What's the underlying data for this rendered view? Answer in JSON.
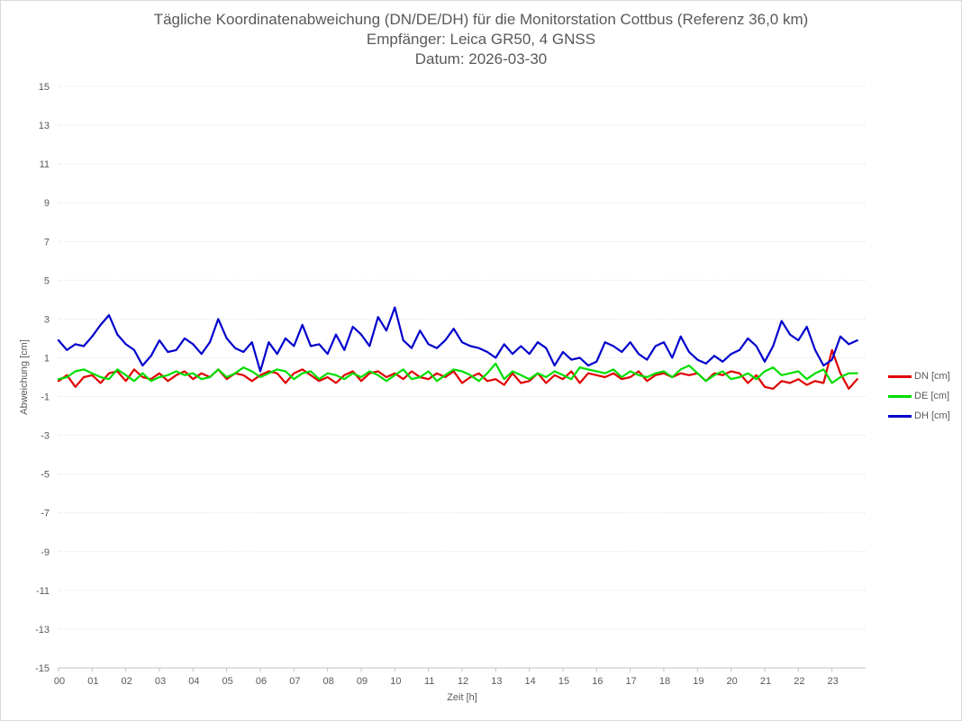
{
  "chart": {
    "title_lines": [
      "Tägliche Koordinatenabweichung (DN/DE/DH) für die Monitorstation Cottbus (Referenz 36,0 km)",
      "Empfänger: Leica GR50, 4 GNSS",
      "Datum: 2026-03-30"
    ]
  },
  "chart_data": {
    "type": "line",
    "title": "Tägliche Koordinatenabweichung (DN/DE/DH) für die Monitorstation Cottbus (Referenz 36,0 km)",
    "subtitle": "Empfänger: Leica GR50, 4 GNSS / Datum: 2026-03-30",
    "xlabel": "Zeit [h]",
    "ylabel": "Abweichung [cm]",
    "xlim": [
      0,
      24
    ],
    "ylim": [
      -15,
      15
    ],
    "x_ticks": [
      "00",
      "01",
      "02",
      "03",
      "04",
      "05",
      "06",
      "07",
      "08",
      "09",
      "10",
      "11",
      "12",
      "13",
      "14",
      "15",
      "16",
      "17",
      "18",
      "19",
      "20",
      "21",
      "22",
      "23"
    ],
    "y_ticks": [
      15,
      13,
      11,
      9,
      7,
      5,
      3,
      1,
      -1,
      -3,
      -5,
      -7,
      -9,
      -11,
      -13,
      -15
    ],
    "grid": "horizontal dotted",
    "legend_position": "right",
    "x": [
      0.0,
      0.25,
      0.5,
      0.75,
      1.0,
      1.25,
      1.5,
      1.75,
      2.0,
      2.25,
      2.5,
      2.75,
      3.0,
      3.25,
      3.5,
      3.75,
      4.0,
      4.25,
      4.5,
      4.75,
      5.0,
      5.25,
      5.5,
      5.75,
      6.0,
      6.25,
      6.5,
      6.75,
      7.0,
      7.25,
      7.5,
      7.75,
      8.0,
      8.25,
      8.5,
      8.75,
      9.0,
      9.25,
      9.5,
      9.75,
      10.0,
      10.25,
      10.5,
      10.75,
      11.0,
      11.25,
      11.5,
      11.75,
      12.0,
      12.25,
      12.5,
      12.75,
      13.0,
      13.25,
      13.5,
      13.75,
      14.0,
      14.25,
      14.5,
      14.75,
      15.0,
      15.25,
      15.5,
      15.75,
      16.0,
      16.25,
      16.5,
      16.75,
      17.0,
      17.25,
      17.5,
      17.75,
      18.0,
      18.25,
      18.5,
      18.75,
      19.0,
      19.25,
      19.5,
      19.75,
      20.0,
      20.25,
      20.5,
      20.75,
      21.0,
      21.25,
      21.5,
      21.75,
      22.0,
      22.25,
      22.5,
      22.75,
      23.0,
      23.25,
      23.5,
      23.75
    ],
    "series": [
      {
        "name": "DN [cm]",
        "color": "#e00000",
        "values": [
          -0.2,
          0.1,
          -0.5,
          0.0,
          0.1,
          -0.3,
          0.2,
          0.3,
          -0.2,
          0.4,
          0.0,
          -0.1,
          0.2,
          -0.2,
          0.1,
          0.3,
          -0.1,
          0.2,
          0.0,
          0.4,
          -0.1,
          0.2,
          0.1,
          -0.2,
          0.1,
          0.3,
          0.2,
          -0.3,
          0.2,
          0.4,
          0.1,
          -0.2,
          0.0,
          -0.3,
          0.1,
          0.3,
          -0.2,
          0.2,
          0.3,
          0.0,
          0.2,
          -0.1,
          0.3,
          0.0,
          -0.1,
          0.2,
          0.0,
          0.3,
          -0.3,
          0.0,
          0.2,
          -0.2,
          -0.1,
          -0.4,
          0.2,
          -0.3,
          -0.2,
          0.2,
          -0.3,
          0.1,
          -0.1,
          0.3,
          -0.3,
          0.2,
          0.1,
          0.0,
          0.2,
          -0.1,
          0.0,
          0.3,
          -0.2,
          0.1,
          0.2,
          0.0,
          0.2,
          0.1,
          0.2,
          -0.2,
          0.2,
          0.1,
          0.3,
          0.2,
          -0.3,
          0.1,
          -0.5,
          -0.6,
          -0.2,
          -0.3,
          -0.1,
          -0.4,
          -0.2,
          -0.3,
          1.4,
          0.2,
          -0.6,
          -0.1
        ]
      },
      {
        "name": "DE [cm]",
        "color": "#00dd00",
        "values": [
          -0.1,
          0.0,
          0.3,
          0.4,
          0.2,
          0.0,
          -0.1,
          0.4,
          0.1,
          -0.2,
          0.2,
          -0.2,
          0.0,
          0.1,
          0.3,
          0.1,
          0.2,
          -0.1,
          0.0,
          0.4,
          0.0,
          0.2,
          0.5,
          0.3,
          0.0,
          0.2,
          0.4,
          0.3,
          -0.1,
          0.2,
          0.3,
          -0.1,
          0.2,
          0.1,
          -0.1,
          0.2,
          0.0,
          0.3,
          0.1,
          -0.2,
          0.1,
          0.4,
          -0.1,
          0.0,
          0.3,
          -0.2,
          0.1,
          0.4,
          0.3,
          0.1,
          -0.2,
          0.2,
          0.7,
          -0.1,
          0.3,
          0.1,
          -0.1,
          0.2,
          0.0,
          0.3,
          0.1,
          -0.1,
          0.5,
          0.4,
          0.3,
          0.2,
          0.4,
          0.0,
          0.3,
          0.1,
          0.0,
          0.2,
          0.3,
          0.0,
          0.4,
          0.6,
          0.2,
          -0.2,
          0.1,
          0.3,
          -0.1,
          0.0,
          0.2,
          -0.1,
          0.3,
          0.5,
          0.1,
          0.2,
          0.3,
          -0.1,
          0.2,
          0.4,
          -0.3,
          0.0,
          0.2,
          0.2
        ]
      },
      {
        "name": "DH [cm]",
        "color": "#0000cc",
        "values": [
          1.9,
          1.4,
          1.7,
          1.6,
          2.1,
          2.7,
          3.2,
          2.2,
          1.7,
          1.4,
          0.6,
          1.1,
          1.9,
          1.3,
          1.4,
          2.0,
          1.7,
          1.2,
          1.8,
          3.0,
          2.0,
          1.5,
          1.3,
          1.8,
          0.3,
          1.8,
          1.2,
          2.0,
          1.6,
          2.7,
          1.6,
          1.7,
          1.2,
          2.2,
          1.4,
          2.6,
          2.2,
          1.6,
          3.1,
          2.4,
          3.6,
          1.9,
          1.5,
          2.4,
          1.7,
          1.5,
          1.9,
          2.5,
          1.8,
          1.6,
          1.5,
          1.3,
          1.0,
          1.7,
          1.2,
          1.6,
          1.2,
          1.8,
          1.5,
          0.6,
          1.3,
          0.9,
          1.0,
          0.6,
          0.8,
          1.8,
          1.6,
          1.3,
          1.8,
          1.2,
          0.9,
          1.6,
          1.8,
          1.0,
          2.1,
          1.3,
          0.9,
          0.7,
          1.1,
          0.8,
          1.2,
          1.4,
          2.0,
          1.6,
          0.8,
          1.6,
          2.9,
          2.2,
          1.9,
          2.6,
          1.4,
          0.6,
          0.9,
          2.1,
          1.7,
          1.9
        ]
      }
    ]
  }
}
